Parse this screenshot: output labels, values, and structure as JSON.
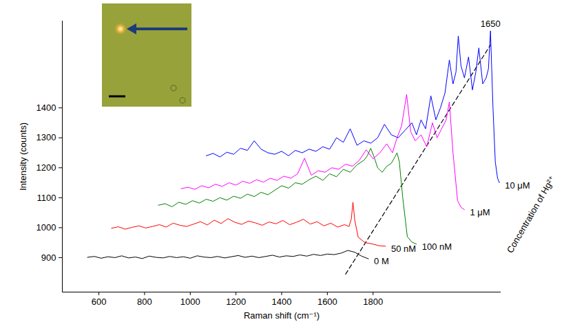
{
  "chart_data": {
    "type": "line",
    "x_label": "Raman shift (cm⁻¹)",
    "y_label": "Intensity (counts)",
    "xlim": [
      440,
      2360
    ],
    "ylim": [
      785,
      1690
    ],
    "xticks": [
      600,
      800,
      1000,
      1200,
      1400,
      1600,
      1800
    ],
    "yticks": [
      900,
      1000,
      1100,
      1200,
      1300,
      1400
    ],
    "depth_label": "Concentration of Hg²⁺",
    "annotations": [
      {
        "text": "1650",
        "x": 2314,
        "y": 1657
      }
    ],
    "guide": {
      "x": [
        1680,
        2314
      ],
      "y": [
        845,
        1610
      ],
      "line_style": "dashed"
    },
    "series": [
      {
        "name": "0 M",
        "color": "#000000",
        "x": [
          550,
          580,
          610,
          640,
          670,
          700,
          730,
          760,
          790,
          820,
          850,
          880,
          910,
          940,
          970,
          1000,
          1030,
          1060,
          1090,
          1120,
          1150,
          1180,
          1210,
          1240,
          1270,
          1300,
          1330,
          1360,
          1390,
          1420,
          1450,
          1480,
          1510,
          1540,
          1570,
          1600,
          1630,
          1660,
          1690,
          1720,
          1750,
          1780
        ],
        "values": [
          901,
          904,
          898,
          903,
          900,
          906,
          899,
          902,
          897,
          905,
          901,
          899,
          904,
          900,
          903,
          898,
          906,
          902,
          900,
          904,
          899,
          903,
          907,
          901,
          905,
          900,
          904,
          908,
          902,
          906,
          904,
          909,
          905,
          911,
          907,
          912,
          910,
          915,
          924,
          918,
          905,
          896
        ]
      },
      {
        "name": "50 nM",
        "color": "#ff0000",
        "x": [
          655,
          685,
          715,
          745,
          775,
          805,
          835,
          865,
          895,
          925,
          955,
          985,
          1015,
          1045,
          1075,
          1105,
          1135,
          1165,
          1195,
          1225,
          1255,
          1285,
          1315,
          1345,
          1375,
          1405,
          1435,
          1465,
          1495,
          1525,
          1555,
          1585,
          1615,
          1645,
          1675,
          1695,
          1705,
          1712,
          1720,
          1735,
          1765,
          1795,
          1825,
          1855
        ],
        "values": [
          998,
          1003,
          995,
          1001,
          1006,
          999,
          1004,
          1010,
          1002,
          1015,
          1008,
          1004,
          1012,
          1020,
          1009,
          1025,
          1014,
          1030,
          1018,
          1011,
          1022,
          1016,
          1008,
          1019,
          1013,
          1024,
          1010,
          1018,
          1028,
          1012,
          1020,
          1006,
          1015,
          1002,
          1010,
          1004,
          1030,
          1085,
          1025,
          968,
          950,
          946,
          940,
          938
        ]
      },
      {
        "name": "100 nM",
        "color": "#008000",
        "x": [
          860,
          890,
          920,
          950,
          980,
          1010,
          1040,
          1070,
          1100,
          1130,
          1160,
          1190,
          1220,
          1250,
          1280,
          1310,
          1340,
          1370,
          1400,
          1430,
          1460,
          1490,
          1520,
          1550,
          1580,
          1610,
          1640,
          1670,
          1700,
          1730,
          1760,
          1775,
          1790,
          1805,
          1820,
          1840,
          1860,
          1880,
          1895,
          1905,
          1915,
          1930,
          1950,
          1970,
          1990
        ],
        "values": [
          1075,
          1080,
          1070,
          1085,
          1078,
          1090,
          1082,
          1095,
          1088,
          1100,
          1092,
          1105,
          1098,
          1112,
          1104,
          1118,
          1110,
          1125,
          1140,
          1132,
          1150,
          1145,
          1160,
          1172,
          1158,
          1180,
          1170,
          1195,
          1185,
          1210,
          1225,
          1240,
          1265,
          1235,
          1200,
          1185,
          1205,
          1215,
          1235,
          1250,
          1220,
          1100,
          970,
          952,
          945
        ]
      },
      {
        "name": "1 μM",
        "color": "#ff00ff",
        "x": [
          960,
          990,
          1020,
          1050,
          1080,
          1110,
          1140,
          1170,
          1200,
          1230,
          1260,
          1290,
          1320,
          1350,
          1380,
          1410,
          1440,
          1470,
          1500,
          1530,
          1560,
          1590,
          1620,
          1650,
          1680,
          1710,
          1740,
          1770,
          1800,
          1830,
          1860,
          1885,
          1905,
          1925,
          1947,
          1965,
          1985,
          2010,
          2035,
          2060,
          2080,
          2100,
          2120,
          2134,
          2150,
          2170,
          2185,
          2200
        ],
        "values": [
          1130,
          1135,
          1128,
          1140,
          1133,
          1145,
          1138,
          1150,
          1142,
          1155,
          1148,
          1160,
          1152,
          1165,
          1158,
          1172,
          1165,
          1180,
          1232,
          1175,
          1190,
          1185,
          1200,
          1195,
          1212,
          1205,
          1225,
          1260,
          1230,
          1250,
          1280,
          1250,
          1300,
          1340,
          1445,
          1320,
          1290,
          1310,
          1270,
          1350,
          1300,
          1330,
          1360,
          1420,
          1250,
          1090,
          1068,
          1060
        ]
      },
      {
        "name": "10 μM",
        "color": "#0000ff",
        "x": [
          1070,
          1100,
          1130,
          1160,
          1190,
          1220,
          1250,
          1280,
          1310,
          1340,
          1370,
          1400,
          1430,
          1460,
          1490,
          1520,
          1550,
          1580,
          1610,
          1640,
          1670,
          1700,
          1730,
          1760,
          1790,
          1820,
          1850,
          1880,
          1910,
          1940,
          1970,
          1990,
          2010,
          2030,
          2053,
          2075,
          2095,
          2115,
          2134,
          2150,
          2163,
          2173,
          2185,
          2200,
          2218,
          2235,
          2250,
          2263,
          2280,
          2295,
          2305,
          2314,
          2325,
          2335,
          2345,
          2353
        ],
        "values": [
          1240,
          1248,
          1236,
          1252,
          1245,
          1265,
          1258,
          1290,
          1262,
          1250,
          1245,
          1255,
          1240,
          1258,
          1250,
          1262,
          1255,
          1270,
          1262,
          1300,
          1285,
          1330,
          1275,
          1290,
          1282,
          1300,
          1345,
          1310,
          1300,
          1325,
          1350,
          1310,
          1360,
          1330,
          1440,
          1360,
          1400,
          1450,
          1560,
          1480,
          1520,
          1640,
          1540,
          1500,
          1570,
          1460,
          1520,
          1600,
          1480,
          1500,
          1530,
          1657,
          1400,
          1220,
          1165,
          1150
        ]
      }
    ]
  }
}
